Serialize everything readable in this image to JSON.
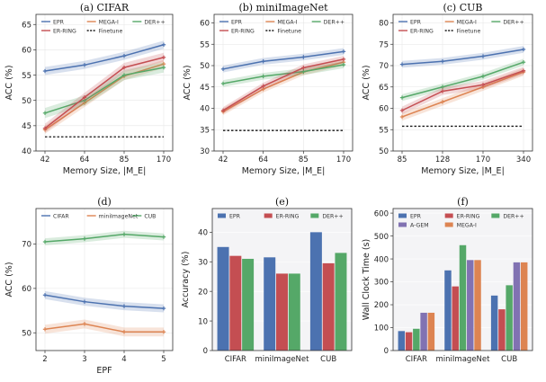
{
  "chart_data": [
    {
      "id": "a",
      "type": "line",
      "title": "(a) CIFAR",
      "xlabel": "Memory Size, |M_E|",
      "ylabel": "ACC (%)",
      "xticks": [
        "42",
        "64",
        "85",
        "170"
      ],
      "yticks": [
        40,
        45,
        50,
        55,
        60,
        65
      ],
      "ylim": [
        40,
        67
      ],
      "legend": {
        "position": "top",
        "columns": 3
      },
      "baseline": {
        "name": "Finetune",
        "value": 42.8,
        "color": "#1a1a1a"
      },
      "series": [
        {
          "name": "EPR",
          "color": "#4c72b0",
          "values": [
            55.8,
            57.0,
            58.8,
            61.0
          ],
          "band": 0.8
        },
        {
          "name": "MEGA-I",
          "color": "#dd8452",
          "values": [
            44.2,
            49.5,
            54.8,
            57.2
          ],
          "band": 0.8
        },
        {
          "name": "DER++",
          "color": "#55a868",
          "values": [
            47.5,
            50.0,
            55.0,
            56.5
          ],
          "band": 1.0
        },
        {
          "name": "ER-RING",
          "color": "#c44e52",
          "values": [
            44.5,
            50.6,
            56.5,
            58.5
          ],
          "band": 0.9
        }
      ]
    },
    {
      "id": "b",
      "type": "line",
      "title": "(b) miniImageNet",
      "xlabel": "Memory Size, |M_E|",
      "ylabel": "ACC (%)",
      "xticks": [
        "42",
        "64",
        "85",
        "170"
      ],
      "yticks": [
        30,
        35,
        40,
        45,
        50,
        55,
        60
      ],
      "ylim": [
        30,
        62
      ],
      "legend": {
        "position": "top",
        "columns": 3
      },
      "baseline": {
        "name": "Finetune",
        "value": 34.8,
        "color": "#1a1a1a"
      },
      "series": [
        {
          "name": "EPR",
          "color": "#4c72b0",
          "values": [
            49.2,
            51.0,
            52.0,
            53.3
          ],
          "band": 0.8
        },
        {
          "name": "MEGA-I",
          "color": "#dd8452",
          "values": [
            39.2,
            44.5,
            48.5,
            50.8
          ],
          "band": 0.8
        },
        {
          "name": "DER++",
          "color": "#55a868",
          "values": [
            45.8,
            47.5,
            48.6,
            50.2
          ],
          "band": 0.8
        },
        {
          "name": "ER-RING",
          "color": "#c44e52",
          "values": [
            39.5,
            45.2,
            49.5,
            51.5
          ],
          "band": 0.8
        }
      ]
    },
    {
      "id": "c",
      "type": "line",
      "title": "(c) CUB",
      "xlabel": "Memory Size, |M_E|",
      "ylabel": "ACC (%)",
      "xticks": [
        "85",
        "128",
        "170",
        "340"
      ],
      "yticks": [
        50,
        55,
        60,
        65,
        70,
        75,
        80
      ],
      "ylim": [
        50,
        82
      ],
      "legend": {
        "position": "top",
        "columns": 3
      },
      "baseline": {
        "name": "Finetune",
        "value": 55.8,
        "color": "#1a1a1a"
      },
      "series": [
        {
          "name": "EPR",
          "color": "#4c72b0",
          "values": [
            70.3,
            71.0,
            72.2,
            73.8
          ],
          "band": 0.8
        },
        {
          "name": "MEGA-I",
          "color": "#dd8452",
          "values": [
            58.0,
            61.5,
            65.0,
            68.5
          ],
          "band": 0.9
        },
        {
          "name": "DER++",
          "color": "#55a868",
          "values": [
            62.5,
            65.0,
            67.5,
            70.8
          ],
          "band": 0.8
        },
        {
          "name": "ER-RING",
          "color": "#c44e52",
          "values": [
            59.5,
            64.0,
            65.5,
            68.8
          ],
          "band": 0.9
        }
      ]
    },
    {
      "id": "d",
      "type": "line",
      "title": "(d)",
      "xlabel": "EPF",
      "ylabel": "ACC (%)",
      "xticks": [
        "2",
        "3",
        "4",
        "5"
      ],
      "yticks": [
        50,
        60,
        70
      ],
      "ylim": [
        46,
        78
      ],
      "legend": {
        "position": "top",
        "columns": 3
      },
      "series": [
        {
          "name": "CIFAR",
          "color": "#4c72b0",
          "values": [
            58.5,
            57.0,
            56.0,
            55.5
          ],
          "band": 0.9
        },
        {
          "name": "miniImageNet",
          "color": "#dd8452",
          "values": [
            50.8,
            52.0,
            50.2,
            50.2
          ],
          "band": 1.0
        },
        {
          "name": "CUB",
          "color": "#55a868",
          "values": [
            70.5,
            71.2,
            72.2,
            71.6
          ],
          "band": 0.8
        }
      ]
    },
    {
      "id": "e",
      "type": "bar",
      "title": "(e)",
      "xlabel": "",
      "ylabel": "Accuracy (%)",
      "categories": [
        "CIFAR",
        "miniImageNet",
        "CUB"
      ],
      "yticks": [
        0,
        10,
        20,
        30,
        40
      ],
      "ylim": [
        0,
        48
      ],
      "legend": {
        "position": "top",
        "columns": 3
      },
      "series": [
        {
          "name": "EPR",
          "color": "#4c72b0",
          "values": [
            35.0,
            31.5,
            40.0
          ]
        },
        {
          "name": "ER-RING",
          "color": "#c44e52",
          "values": [
            32.0,
            26.0,
            29.5
          ]
        },
        {
          "name": "DER++",
          "color": "#55a868",
          "values": [
            31.0,
            26.0,
            33.0
          ]
        }
      ]
    },
    {
      "id": "f",
      "type": "bar",
      "title": "(f)",
      "xlabel": "",
      "ylabel": "Wall Clock Time (s)",
      "categories": [
        "CIFAR",
        "miniImageNet",
        "CUB"
      ],
      "yticks": [
        0,
        100,
        200,
        300,
        400,
        500,
        600
      ],
      "ylim": [
        0,
        620
      ],
      "legend": {
        "position": "top",
        "columns": 3
      },
      "series": [
        {
          "name": "EPR",
          "color": "#4c72b0",
          "values": [
            85,
            350,
            240
          ]
        },
        {
          "name": "ER-RING",
          "color": "#c44e52",
          "values": [
            80,
            280,
            180
          ]
        },
        {
          "name": "DER++",
          "color": "#55a868",
          "values": [
            95,
            460,
            285
          ]
        },
        {
          "name": "A-GEM",
          "color": "#8172b2",
          "values": [
            165,
            395,
            385
          ]
        },
        {
          "name": "MEGA-I",
          "color": "#dd8452",
          "values": [
            165,
            395,
            385
          ]
        }
      ]
    }
  ]
}
